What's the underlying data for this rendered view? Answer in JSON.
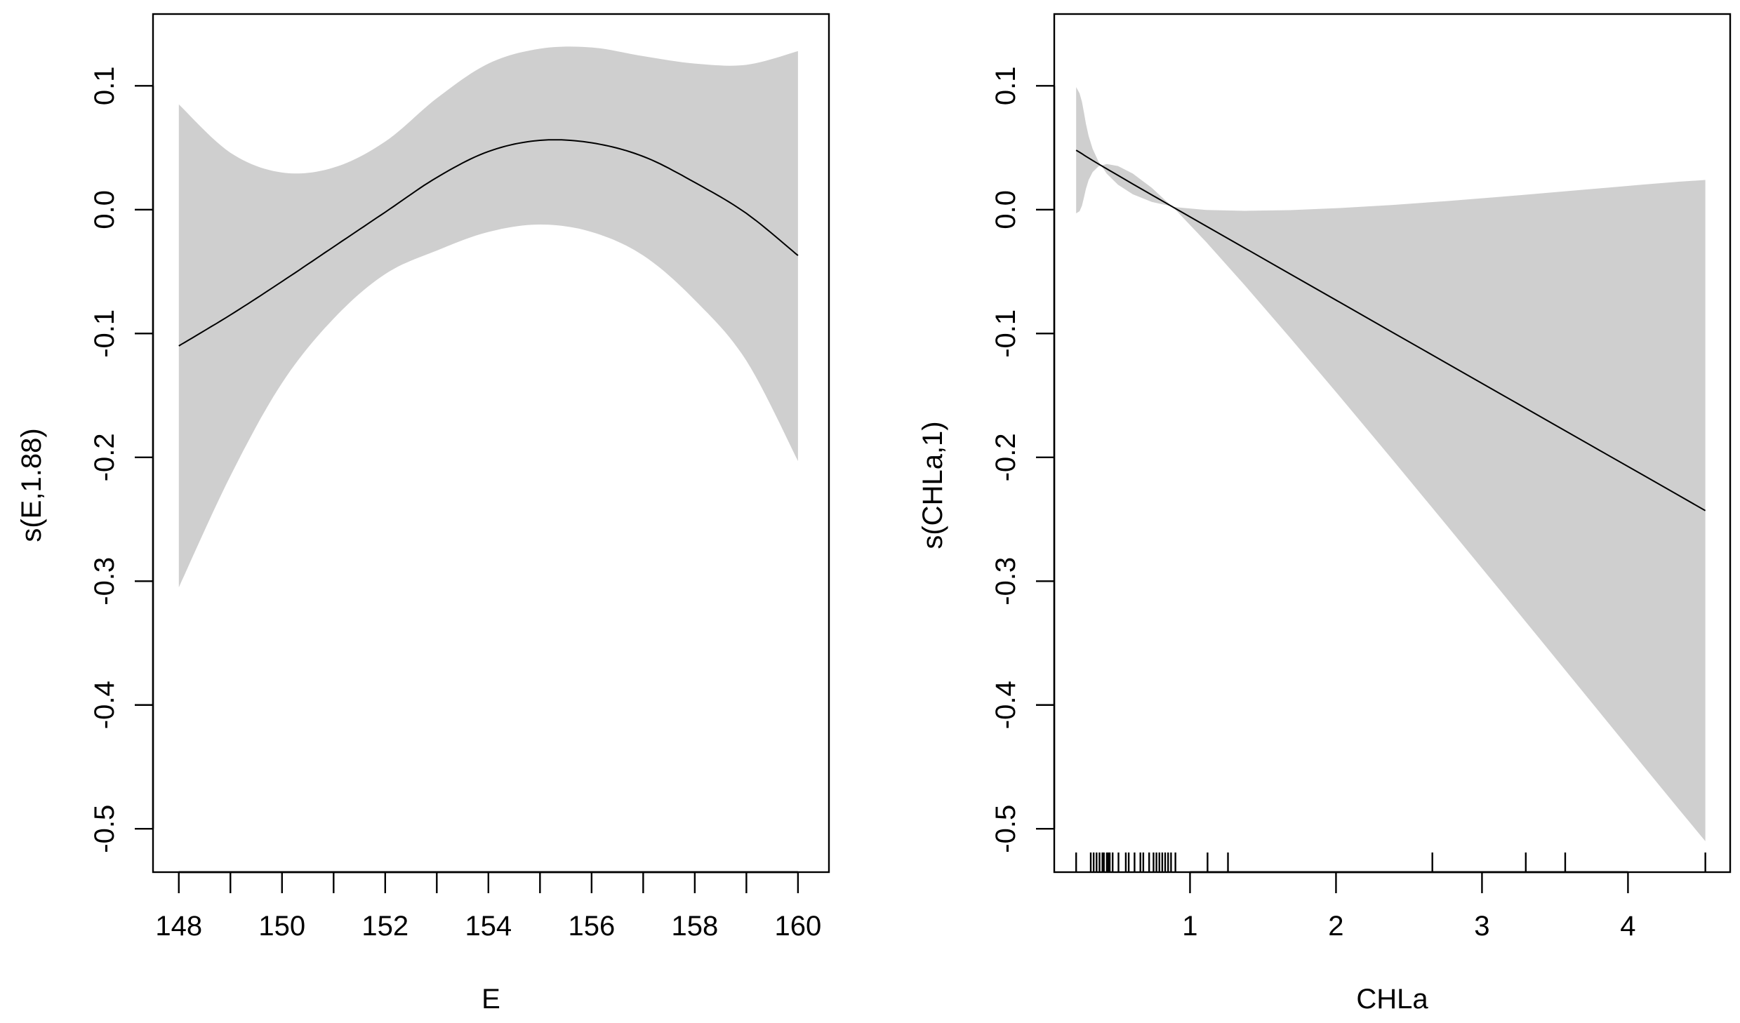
{
  "colors": {
    "band": "#cfcfcf",
    "line": "#000000",
    "background": "#ffffff"
  },
  "chart_data": [
    {
      "type": "line",
      "panel": "left",
      "title": "",
      "xlabel": "E",
      "ylabel": "s(E,1.88)",
      "xlim": [
        147.5,
        160.6
      ],
      "ylim": [
        -0.535,
        0.158
      ],
      "x_ticks": [
        148,
        150,
        152,
        154,
        156,
        158,
        160
      ],
      "x_minor_ticks": [
        149,
        151,
        153,
        155,
        157,
        159
      ],
      "x_tick_labels": [
        "148",
        "150",
        "152",
        "154",
        "156",
        "158",
        "160"
      ],
      "y_ticks": [
        0.1,
        0.0,
        -0.1,
        -0.2,
        -0.3,
        -0.4,
        -0.5
      ],
      "y_tick_labels": [
        "0.1",
        "0.0",
        "-0.1",
        "-0.2",
        "-0.3",
        "-0.4",
        "-0.5"
      ],
      "series": [
        {
          "name": "fit",
          "x": [
            148,
            149,
            150,
            151,
            152,
            153,
            154,
            155,
            156,
            157,
            158,
            159,
            160
          ],
          "values": [
            -0.11,
            -0.085,
            -0.058,
            -0.03,
            -0.002,
            0.026,
            0.047,
            0.056,
            0.054,
            0.043,
            0.022,
            -0.003,
            -0.037
          ]
        },
        {
          "name": "upper",
          "x": [
            148,
            149,
            150,
            151,
            152,
            153,
            154,
            155,
            156,
            157,
            158,
            159,
            160
          ],
          "values": [
            0.085,
            0.046,
            0.03,
            0.034,
            0.055,
            0.09,
            0.118,
            0.13,
            0.131,
            0.124,
            0.118,
            0.117,
            0.128
          ]
        },
        {
          "name": "lower",
          "x": [
            148,
            149,
            150,
            151,
            152,
            153,
            154,
            155,
            156,
            157,
            158,
            159,
            160
          ],
          "values": [
            -0.305,
            -0.215,
            -0.14,
            -0.088,
            -0.052,
            -0.033,
            -0.018,
            -0.012,
            -0.018,
            -0.037,
            -0.073,
            -0.122,
            -0.203
          ]
        }
      ],
      "rug": []
    },
    {
      "type": "line",
      "panel": "right",
      "title": "",
      "xlabel": "CHLa",
      "ylabel": "s(CHLa,1)",
      "xlim": [
        0.07,
        4.7
      ],
      "ylim": [
        -0.535,
        0.158
      ],
      "x_ticks": [
        1,
        2,
        3,
        4
      ],
      "x_tick_labels": [
        "1",
        "2",
        "3",
        "4"
      ],
      "y_ticks": [
        0.1,
        0.0,
        -0.1,
        -0.2,
        -0.3,
        -0.4,
        -0.5
      ],
      "y_tick_labels": [
        "0.1",
        "0.0",
        "-0.1",
        "-0.2",
        "-0.3",
        "-0.4",
        "-0.5"
      ],
      "series": [
        {
          "name": "fit",
          "x": [
            0.22,
            0.9,
            4.53
          ],
          "values": [
            0.048,
            0.001,
            -0.243
          ]
        },
        {
          "name": "upper",
          "x": [
            0.22,
            0.9,
            4.53
          ],
          "values": [
            0.099,
            0.002,
            0.024
          ]
        },
        {
          "name": "lower",
          "x": [
            0.22,
            0.9,
            4.53
          ],
          "values": [
            -0.003,
            0.0,
            -0.51
          ]
        }
      ],
      "rug": [
        0.22,
        0.32,
        0.34,
        0.36,
        0.38,
        0.4,
        0.41,
        0.43,
        0.44,
        0.45,
        0.47,
        0.51,
        0.56,
        0.58,
        0.62,
        0.66,
        0.68,
        0.72,
        0.75,
        0.77,
        0.79,
        0.81,
        0.83,
        0.85,
        0.87,
        0.9,
        1.12,
        1.26,
        2.66,
        3.3,
        3.57,
        4.53
      ]
    }
  ]
}
